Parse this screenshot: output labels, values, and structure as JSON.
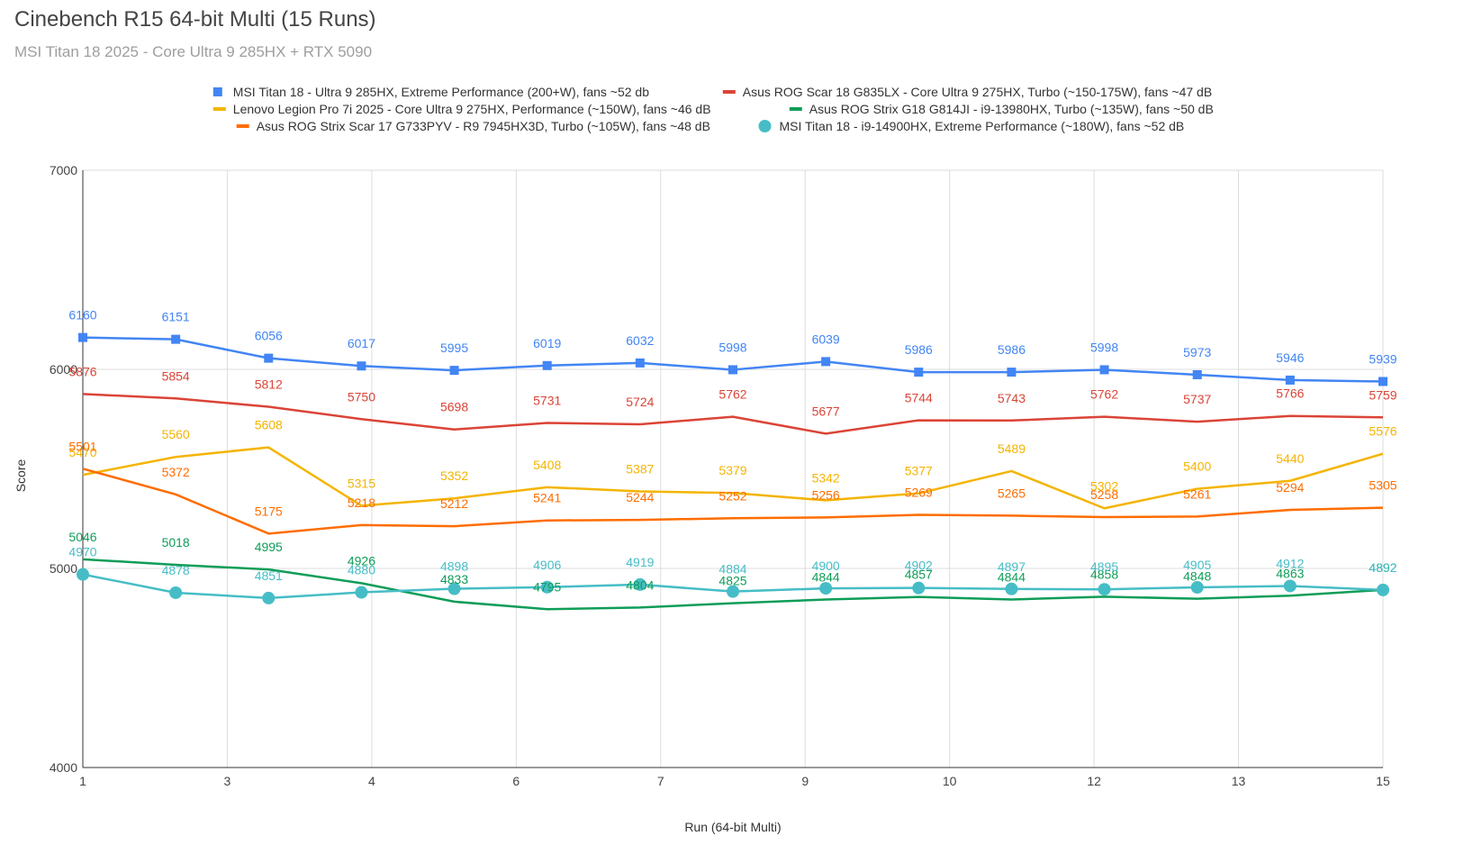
{
  "title": "Cinebench R15 64-bit Multi (15 Runs)",
  "subtitle": "MSI Titan 18 2025 - Core Ultra 9 285HX + RTX 5090",
  "chart_data": {
    "type": "line",
    "title": "Cinebench R15 64-bit Multi (15 Runs)",
    "subtitle": "MSI Titan 18 2025 - Core Ultra 9 285HX + RTX 5090",
    "xlabel": "Run (64-bit Multi)",
    "ylabel": "Score",
    "ylim": [
      4000,
      7000
    ],
    "yticks": [
      4000,
      5000,
      6000,
      7000
    ],
    "xlim": [
      1,
      15
    ],
    "xticks": [
      1,
      3,
      4,
      6,
      7,
      9,
      10,
      12,
      13,
      15
    ],
    "grid": true,
    "legend_position": "top",
    "x": [
      1,
      2,
      3,
      4,
      5,
      6,
      7,
      8,
      9,
      10,
      11,
      12,
      13,
      14,
      15
    ],
    "series": [
      {
        "name": "MSI Titan 18 - Ultra 9 285HX, Extreme Performance (200+W), fans ~52 db",
        "color": "#4285f4",
        "marker": "square",
        "values": [
          6160,
          6151,
          6056,
          6017,
          5995,
          6019,
          6032,
          5998,
          6039,
          5986,
          5986,
          5998,
          5973,
          5946,
          5939
        ]
      },
      {
        "name": "Asus ROG Scar 18 G835LX - Core Ultra 9 275HX, Turbo (~150-175W), fans ~47 dB",
        "color": "#db4437",
        "marker": "none",
        "values": [
          5876,
          5854,
          5812,
          5750,
          5698,
          5731,
          5724,
          5762,
          5677,
          5744,
          5743,
          5762,
          5737,
          5766,
          5759
        ]
      },
      {
        "name": "Lenovo Legion Pro 7i 2025 - Core Ultra 9 275HX, Performance (~150W), fans ~46 dB",
        "color": "#f4b400",
        "marker": "none",
        "values": [
          5470,
          5560,
          5608,
          5315,
          5352,
          5408,
          5387,
          5379,
          5342,
          5377,
          5489,
          5302,
          5400,
          5440,
          5576
        ]
      },
      {
        "name": "Asus ROG Strix G18 G814JI - i9-13980HX, Turbo (~135W), fans ~50 dB",
        "color": "#0f9d58",
        "marker": "none",
        "values": [
          5046,
          5018,
          4995,
          4926,
          4833,
          4795,
          4804,
          4825,
          4844,
          4857,
          4844,
          4858,
          4848,
          4863,
          4892
        ]
      },
      {
        "name": "Asus ROG Strix Scar 17 G733PYV - R9 7945HX3D, Turbo (~105W), fans ~48 dB",
        "color": "#ff6d00",
        "marker": "none",
        "values": [
          5501,
          5372,
          5175,
          5218,
          5212,
          5241,
          5244,
          5252,
          5256,
          5269,
          5265,
          5258,
          5261,
          5294,
          5305
        ]
      },
      {
        "name": "MSI Titan 18 - i9-14900HX, Extreme Performance (~180W), fans ~52 dB",
        "color": "#46bdc6",
        "marker": "circle",
        "values": [
          4970,
          4878,
          4851,
          4880,
          4898,
          4906,
          4919,
          4884,
          4900,
          4902,
          4897,
          4895,
          4905,
          4912,
          4892
        ]
      }
    ]
  }
}
